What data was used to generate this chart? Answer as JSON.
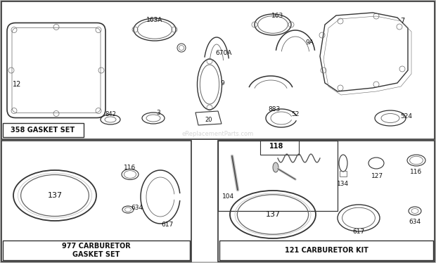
{
  "bg_color": "#f5f5f0",
  "border_color": "#222222",
  "gasket_set_label": "358 GASKET SET",
  "carb_gasket_label": "977 CARBURETOR\nGASKET SET",
  "carb_kit_label": "121 CARBURETOR KIT",
  "fig_w": 6.2,
  "fig_h": 3.74,
  "dpi": 100
}
